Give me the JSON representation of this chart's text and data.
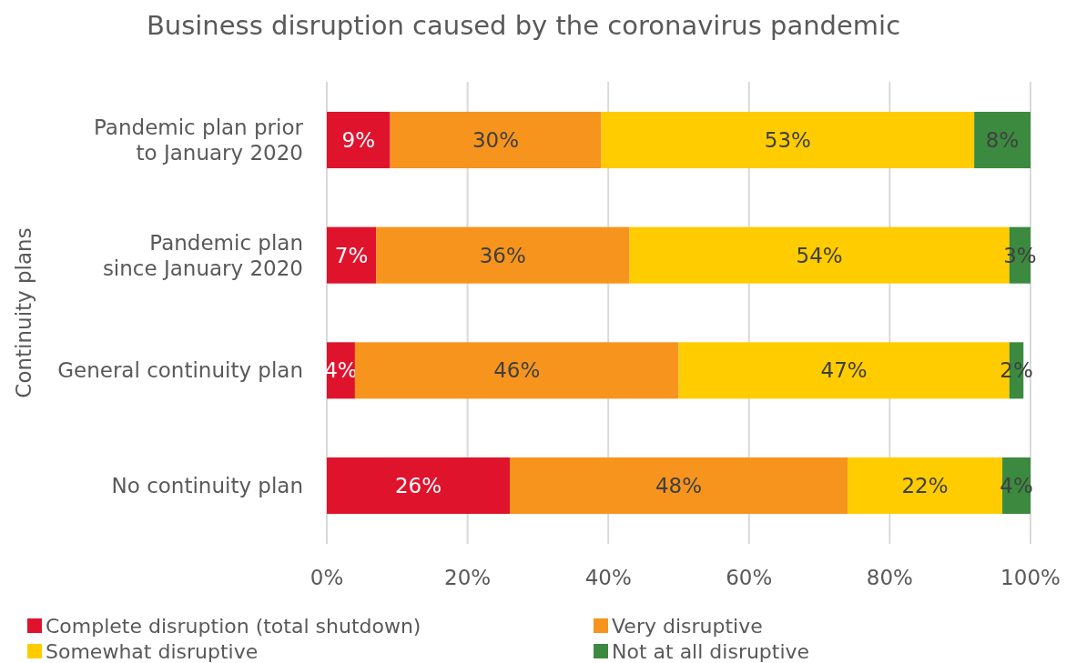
{
  "chart_data": {
    "type": "bar",
    "orientation": "horizontal",
    "stacked": true,
    "title": "Business disruption caused by the coronavirus pandemic",
    "ylabel": "Continuity plans",
    "categories": [
      "Pandemic plan prior to January 2020",
      "Pandemic plan since January 2020",
      "General continuity plan",
      "No continuity plan"
    ],
    "series": [
      {
        "name": "Complete disruption (total shutdown)",
        "color": "#e0132d",
        "values": [
          9,
          7,
          4,
          26
        ],
        "value_labels": [
          "9%",
          "7%",
          "4%",
          "26%"
        ]
      },
      {
        "name": "Very disruptive",
        "color": "#f7941e",
        "values": [
          30,
          36,
          46,
          48
        ],
        "value_labels": [
          "30%",
          "36%",
          "46%",
          "48%"
        ]
      },
      {
        "name": "Somewhat disruptive",
        "color": "#ffcc00",
        "values": [
          53,
          54,
          47,
          22
        ],
        "value_labels": [
          "53%",
          "54%",
          "47%",
          "22%"
        ]
      },
      {
        "name": "Not at all disruptive",
        "color": "#3b8a3f",
        "values": [
          8,
          3,
          2,
          4
        ],
        "value_labels": [
          "8%",
          "3%",
          "2%",
          "4%"
        ]
      }
    ],
    "xlim": [
      0,
      100
    ],
    "xticks": [
      {
        "value": 0,
        "label": "0%"
      },
      {
        "value": 20,
        "label": "20%"
      },
      {
        "value": 40,
        "label": "40%"
      },
      {
        "value": 60,
        "label": "60%"
      },
      {
        "value": 80,
        "label": "80%"
      },
      {
        "value": 100,
        "label": "100%"
      }
    ],
    "grid": "x",
    "legend": "bottom"
  }
}
